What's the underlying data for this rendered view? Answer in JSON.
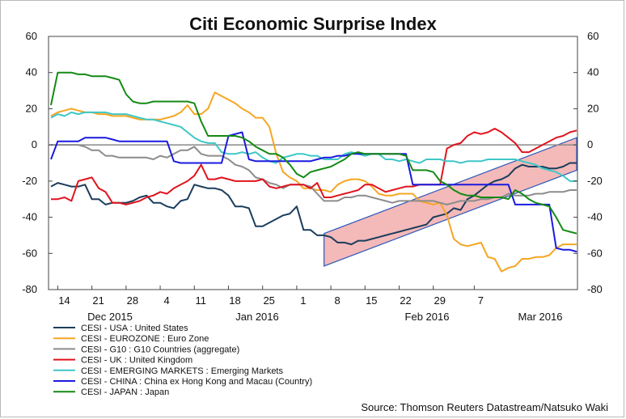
{
  "chart_data": {
    "type": "line",
    "title": "Citi Economic Surprise Index",
    "source": "Source: Thomson Reuters Datastream/Natsuko Waki",
    "ylim": [
      -80,
      60
    ],
    "yticks": [
      "60",
      "40",
      "20",
      "0",
      "-20",
      "-40",
      "-60",
      "-80"
    ],
    "x_tick_labels": [
      "14",
      "21",
      "28",
      "4",
      "11",
      "18",
      "25",
      "1",
      "8",
      "15",
      "22",
      "29",
      "7"
    ],
    "month_labels": [
      "Dec 2015",
      "Jan 2016",
      "Feb 2016",
      "Mar 2016"
    ],
    "grid": false,
    "legend_position": "bottom-left",
    "series": [
      {
        "name": "CESI - USA : United States",
        "color": "#1b3d5c",
        "values": [
          -23,
          -21,
          -22,
          -23,
          -23,
          -22,
          -30,
          -30,
          -33,
          -32,
          -32,
          -32,
          -31,
          -29,
          -28,
          -32,
          -32,
          -34,
          -35,
          -31,
          -30,
          -22,
          -23,
          -24,
          -24,
          -25,
          -28,
          -34,
          -34,
          -35,
          -45,
          -45,
          -43,
          -41,
          -39,
          -38,
          -34,
          -47,
          -47,
          -50,
          -50,
          -51,
          -54,
          -54,
          -55,
          -53,
          -53,
          -52,
          -51,
          -50,
          -49,
          -48,
          -47,
          -46,
          -45,
          -44,
          -40,
          -39,
          -38,
          -35,
          -36,
          -30,
          -28,
          -25,
          -22,
          -20,
          -19,
          -17,
          -13,
          -11,
          -12,
          -12,
          -12,
          -13,
          -13,
          -12,
          -10,
          -10
        ]
      },
      {
        "name": "CESI - EUROZONE : Euro Zone",
        "color": "#f5a623",
        "values": [
          16,
          18,
          19,
          20,
          19,
          18,
          18,
          17,
          17,
          16,
          16,
          16,
          15,
          14,
          14,
          14,
          14,
          15,
          16,
          18,
          22,
          17,
          17,
          20,
          29,
          27,
          25,
          23,
          20,
          18,
          15,
          15,
          10,
          -5,
          -15,
          -18,
          -20,
          -24,
          -24,
          -25,
          -25,
          -26,
          -22,
          -20,
          -19,
          -19,
          -20,
          -23,
          -27,
          -28,
          -28,
          -27,
          -27,
          -27,
          -31,
          -32,
          -33,
          -32,
          -39,
          -52,
          -55,
          -56,
          -55,
          -54,
          -62,
          -63,
          -70,
          -68,
          -67,
          -63,
          -63,
          -62,
          -62,
          -61,
          -57,
          -55,
          -55,
          -55
        ]
      },
      {
        "name": "CESI - G10 : G10 Countries (aggregate)",
        "color": "#8c8c8c",
        "values": [
          0,
          0,
          0,
          0,
          0,
          -1,
          -3,
          -3,
          -6,
          -6,
          -7,
          -7,
          -7,
          -7,
          -7,
          -8,
          -6,
          -7,
          -5,
          -3,
          -3,
          -1,
          -5,
          -6,
          -6,
          -6,
          -8,
          -11,
          -12,
          -14,
          -18,
          -19,
          -21,
          -22,
          -24,
          -22,
          -22,
          -22,
          -23,
          -27,
          -31,
          -31,
          -31,
          -29,
          -29,
          -28,
          -28,
          -29,
          -30,
          -31,
          -32,
          -31,
          -31,
          -31,
          -31,
          -31,
          -31,
          -32,
          -33,
          -32,
          -31,
          -31,
          -31,
          -30,
          -30,
          -29,
          -29,
          -27,
          -28,
          -28,
          -28,
          -27,
          -27,
          -26,
          -26,
          -26,
          -25,
          -25
        ]
      },
      {
        "name": "CESI - UK : United Kingdom",
        "color": "#e0141e",
        "values": [
          -30,
          -30,
          -29,
          -31,
          -20,
          -19,
          -18,
          -24,
          -26,
          -32,
          -32,
          -33,
          -32,
          -31,
          -29,
          -28,
          -26,
          -27,
          -24,
          -22,
          -20,
          -17,
          -11,
          -19,
          -19,
          -18,
          -19,
          -20,
          -20,
          -20,
          -20,
          -19,
          -23,
          -24,
          -23,
          -22,
          -22,
          -22,
          -24,
          -21,
          -29,
          -29,
          -28,
          -27,
          -26,
          -25,
          -22,
          -22,
          -24,
          -26,
          -25,
          -24,
          -23,
          -23,
          -22,
          -22,
          -22,
          -22,
          -2,
          0,
          1,
          5,
          7,
          6,
          7,
          9,
          7,
          4,
          1,
          -4,
          -4,
          -2,
          0,
          2,
          4,
          5,
          7,
          8
        ]
      },
      {
        "name": "CESI - EMERGING MARKETS : Emerging Markets",
        "color": "#3fc7c7",
        "values": [
          15,
          17,
          16,
          18,
          17,
          18,
          18,
          18,
          18,
          17,
          17,
          17,
          16,
          15,
          14,
          14,
          13,
          12,
          11,
          10,
          7,
          4,
          2,
          1,
          1,
          -4,
          -5,
          -5,
          -4,
          -5,
          -4,
          -7,
          -9,
          -10,
          -7,
          -6,
          -5,
          -5,
          -6,
          -6,
          -8,
          -8,
          -8,
          -5,
          -4,
          -5,
          -6,
          -5,
          -5,
          -8,
          -8,
          -9,
          -8,
          -9,
          -10,
          -8,
          -8,
          -8,
          -9,
          -9,
          -10,
          -9,
          -9,
          -9,
          -8,
          -8,
          -8,
          -8,
          -8,
          -9,
          -10,
          -11,
          -13,
          -14,
          -15,
          -17,
          -20,
          -20
        ]
      },
      {
        "name": "CESI - CHINA : China ex Hong Kong and Macau (Country)",
        "color": "#1a1adf",
        "values": [
          -8,
          2,
          2,
          2,
          2,
          4,
          4,
          4,
          4,
          3,
          2,
          2,
          2,
          2,
          2,
          2,
          2,
          2,
          -9,
          -10,
          -10,
          -10,
          -10,
          -10,
          -10,
          -10,
          5,
          6,
          7,
          -8,
          -9,
          -9,
          -9,
          -9,
          -9,
          -9,
          -9,
          -9,
          -9,
          -8,
          -7,
          -7,
          -6,
          -6,
          -5,
          -5,
          -5,
          -5,
          -5,
          -5,
          -5,
          -5,
          -5,
          -22,
          -22,
          -22,
          -22,
          -22,
          -22,
          -22,
          -22,
          -22,
          -22,
          -22,
          -22,
          -22,
          -22,
          -22,
          -33,
          -33,
          -33,
          -33,
          -33,
          -33,
          -57,
          -58,
          -58,
          -59
        ]
      },
      {
        "name": "CESI - JAPAN : Japan",
        "color": "#148a14",
        "values": [
          22,
          40,
          40,
          40,
          39,
          39,
          38,
          38,
          38,
          37,
          36,
          28,
          24,
          23,
          23,
          24,
          24,
          24,
          24,
          24,
          24,
          23,
          13,
          5,
          5,
          5,
          5,
          5,
          4,
          2,
          -1,
          -3,
          -5,
          -5,
          -7,
          -11,
          -16,
          -18,
          -15,
          -14,
          -13,
          -12,
          -10,
          -8,
          -5,
          -4,
          -5,
          -5,
          -5,
          -5,
          -5,
          -5,
          -6,
          -14,
          -14,
          -14,
          -15,
          -20,
          -22,
          -25,
          -27,
          -28,
          -28,
          -29,
          -29,
          -29,
          -29,
          -30,
          -25,
          -27,
          -30,
          -32,
          -33,
          -34,
          -40,
          -47,
          -48,
          -49
        ]
      }
    ],
    "annotation_band": {
      "x_start": 40,
      "x_end": 77,
      "y_low_start": -67,
      "y_high_start": -49,
      "y_low_end": -14,
      "y_high_end": 4,
      "fill": "#f4b9b9",
      "stroke": "#2a56b8"
    }
  }
}
